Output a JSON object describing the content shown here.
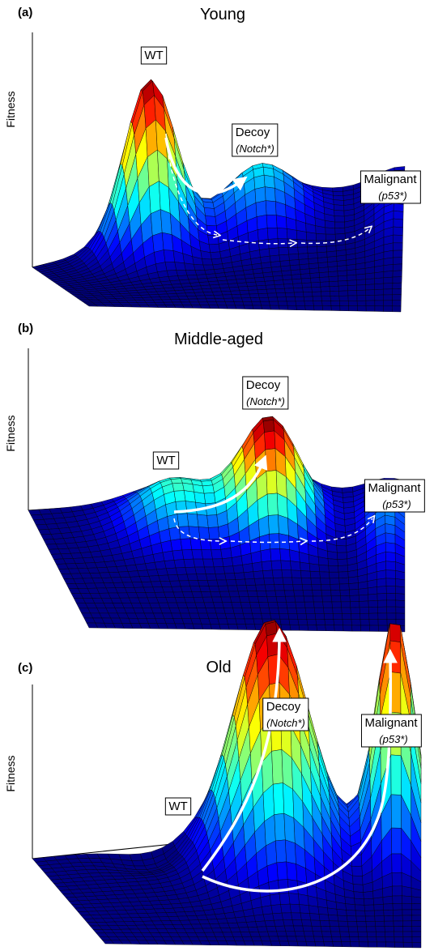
{
  "panels": [
    {
      "letter": "(a)",
      "title": "Young",
      "axis_label": "Fitness",
      "labels": [
        {
          "name": "WT"
        },
        {
          "name": "Decoy",
          "note": "(Notch*)"
        },
        {
          "name": "Malignant",
          "note": "(p53*)"
        }
      ]
    },
    {
      "letter": "(b)",
      "title": "Middle-aged",
      "axis_label": "Fitness",
      "labels": [
        {
          "name": "WT"
        },
        {
          "name": "Decoy",
          "note": "(Notch*)"
        },
        {
          "name": "Malignant",
          "note": "(p53*)"
        }
      ]
    },
    {
      "letter": "(c)",
      "title": "Old",
      "axis_label": "Fitness",
      "labels": [
        {
          "name": "WT"
        },
        {
          "name": "Decoy",
          "note": "(Notch*)"
        },
        {
          "name": "Malignant",
          "note": "(p53*)"
        }
      ]
    }
  ]
}
